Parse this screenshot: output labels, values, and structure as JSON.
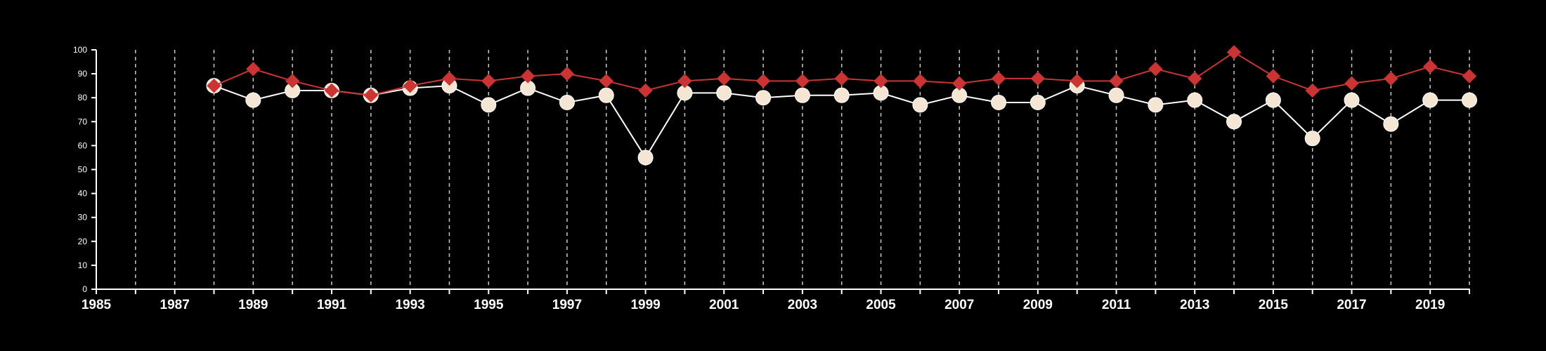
{
  "colors": {
    "background": "#000000",
    "axis": "#ffffff",
    "grid": "#c8c8c8",
    "series_a": "#cc3333",
    "series_b": "#f5e6d3",
    "series_b_line": "#ffffff"
  },
  "chart_data": {
    "type": "line",
    "xlim": [
      1985,
      2020
    ],
    "ylim": [
      0,
      100
    ],
    "x_ticks": [
      1985,
      1986,
      1987,
      1988,
      1989,
      1990,
      1991,
      1992,
      1993,
      1994,
      1995,
      1996,
      1997,
      1998,
      1999,
      2000,
      2001,
      2002,
      2003,
      2004,
      2005,
      2006,
      2007,
      2008,
      2009,
      2010,
      2011,
      2012,
      2013,
      2014,
      2015,
      2016,
      2017,
      2018,
      2019,
      2020
    ],
    "x_tick_labels": [
      {
        "x": 1985,
        "label": "1985"
      },
      {
        "x": 1987,
        "label": "1987"
      },
      {
        "x": 1989,
        "label": "1989"
      },
      {
        "x": 1991,
        "label": "1991"
      },
      {
        "x": 1993,
        "label": "1993"
      },
      {
        "x": 1995,
        "label": "1995"
      },
      {
        "x": 1997,
        "label": "1997"
      },
      {
        "x": 1999,
        "label": "1999"
      },
      {
        "x": 2001,
        "label": "2001"
      },
      {
        "x": 2003,
        "label": "2003"
      },
      {
        "x": 2005,
        "label": "2005"
      },
      {
        "x": 2007,
        "label": "2007"
      },
      {
        "x": 2009,
        "label": "2009"
      },
      {
        "x": 2011,
        "label": "2011"
      },
      {
        "x": 2013,
        "label": "2013"
      },
      {
        "x": 2015,
        "label": "2015"
      },
      {
        "x": 2017,
        "label": "2017"
      },
      {
        "x": 2019,
        "label": "2019"
      }
    ],
    "y_ticks": [
      {
        "y": 0,
        "label": "0"
      },
      {
        "y": 10,
        "label": "10"
      },
      {
        "y": 20,
        "label": "20"
      },
      {
        "y": 30,
        "label": "30"
      },
      {
        "y": 40,
        "label": "40"
      },
      {
        "y": 50,
        "label": "50"
      },
      {
        "y": 60,
        "label": "60"
      },
      {
        "y": 70,
        "label": "70"
      },
      {
        "y": 80,
        "label": "80"
      },
      {
        "y": 90,
        "label": "90"
      },
      {
        "y": 100,
        "label": "100"
      }
    ],
    "grid": "vertical dashed",
    "x": [
      1988,
      1989,
      1990,
      1991,
      1992,
      1993,
      1994,
      1995,
      1996,
      1997,
      1998,
      1999,
      2000,
      2001,
      2002,
      2003,
      2004,
      2005,
      2006,
      2007,
      2008,
      2009,
      2010,
      2011,
      2012,
      2013,
      2014,
      2015,
      2016,
      2017,
      2018,
      2019,
      2020
    ],
    "series": [
      {
        "marker": "diamond",
        "color": "#cc3333",
        "values": [
          85,
          92,
          87,
          83,
          81,
          85,
          88,
          87,
          89,
          90,
          87,
          83,
          87,
          88,
          87,
          87,
          88,
          87,
          87,
          86,
          88,
          88,
          87,
          87,
          92,
          88,
          99,
          89,
          83,
          86,
          88,
          93,
          89
        ]
      },
      {
        "marker": "circle",
        "color": "#f5e6d3",
        "values": [
          85,
          79,
          83,
          83,
          81,
          84,
          85,
          77,
          84,
          78,
          81,
          55,
          82,
          82,
          80,
          81,
          81,
          82,
          77,
          81,
          78,
          78,
          85,
          81,
          77,
          79,
          70,
          79,
          63,
          79,
          69,
          79,
          79
        ]
      }
    ]
  }
}
